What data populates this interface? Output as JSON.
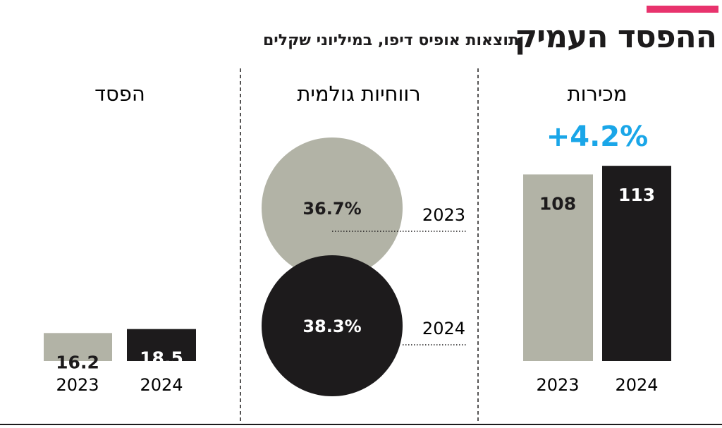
{
  "header": {
    "title": "ההפסד העמיק",
    "subtitle": "תוצאות אופיס דיפו, במיליוני שקלים"
  },
  "colors": {
    "accent": "#e8336d",
    "year_2023": "#b2b3a6",
    "year_2024": "#1d1b1c",
    "change": "#1aa6e8",
    "text": "#1d1b1c"
  },
  "chart_data": [
    {
      "type": "bar",
      "title": "מכירות",
      "categories": [
        "2023",
        "2024"
      ],
      "values": [
        108,
        113
      ],
      "value_labels": [
        "108",
        "113"
      ],
      "change_label": "+4.2%",
      "ylim": [
        0,
        115
      ]
    },
    {
      "type": "bubble",
      "title": "רווחיות גולמית",
      "categories": [
        "2023",
        "2024"
      ],
      "values": [
        36.7,
        38.3
      ],
      "value_labels": [
        "36.7%",
        "38.3%"
      ]
    },
    {
      "type": "bar",
      "title": "הפסד",
      "categories": [
        "2023",
        "2024"
      ],
      "values": [
        16.2,
        18.5
      ],
      "value_labels": [
        "16.2",
        "18.5"
      ],
      "ylim": [
        0,
        115
      ]
    }
  ]
}
